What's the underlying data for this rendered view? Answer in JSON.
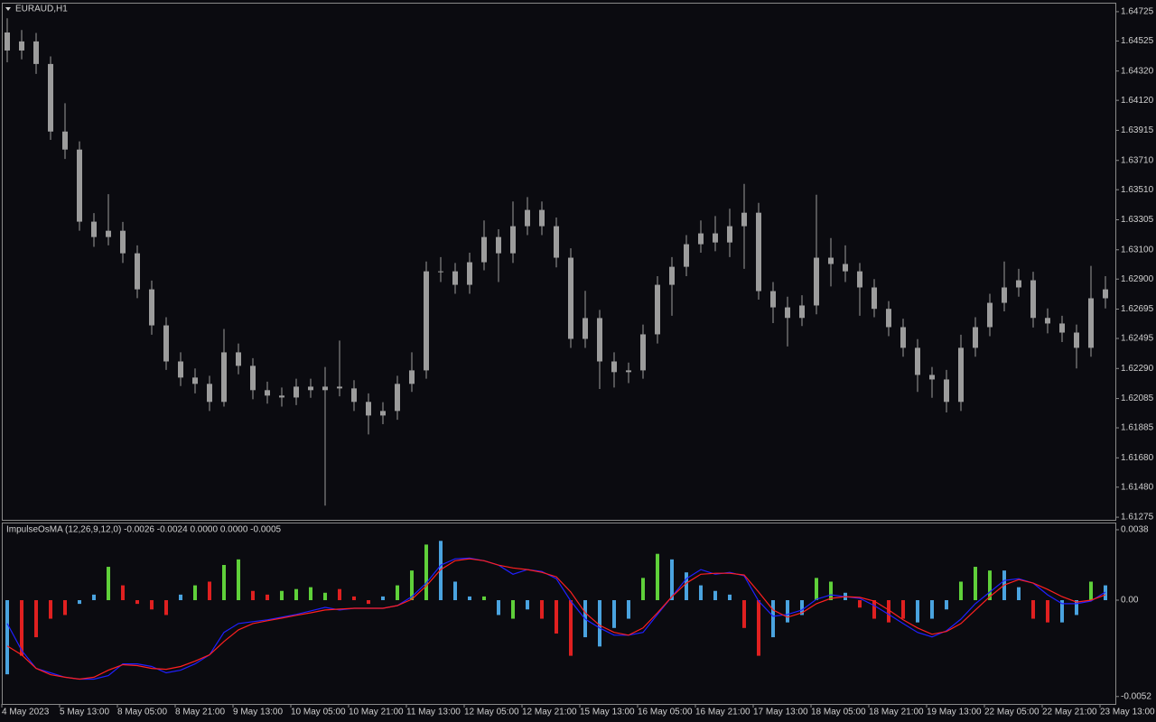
{
  "chart_data": [
    {
      "type": "candlestick",
      "title": "EURAUD,H1",
      "color": "#9c9c9c",
      "open": [
        1.64583,
        1.6446,
        1.64522,
        1.64368,
        1.63907,
        1.63784,
        1.63292,
        1.63187,
        1.6323,
        1.63076,
        1.6283,
        1.62584,
        1.62338,
        1.62228,
        1.62185,
        1.62062,
        1.624,
        1.62308,
        1.62142,
        1.62105,
        1.62092,
        1.62166,
        1.62142,
        1.62166,
        1.62154,
        1.62062,
        1.61969,
        1.62,
        1.62185,
        1.62277,
        1.62953,
        1.62953,
        1.62861,
        1.63015,
        1.63187,
        1.63076,
        1.63261,
        1.63372,
        1.63261,
        1.63046,
        1.62492,
        1.62634,
        1.62338,
        1.62265,
        1.62277,
        1.62523,
        1.62861,
        1.62984,
        1.63138,
        1.63212,
        1.6315,
        1.63261,
        1.63353,
        1.62818,
        1.62707,
        1.62635,
        1.6272,
        1.63046,
        1.63003,
        1.62953,
        1.62843,
        1.62697,
        1.62572,
        1.62431,
        1.62246,
        1.62215,
        1.62062,
        1.62431,
        1.62572,
        1.62738,
        1.62843,
        1.62892,
        1.62635,
        1.62597,
        1.62535,
        1.62431,
        1.62769
      ],
      "high": [
        1.6468,
        1.646,
        1.6458,
        1.6442,
        1.641,
        1.6384,
        1.6335,
        1.6348,
        1.6329,
        1.6313,
        1.6289,
        1.6264,
        1.624,
        1.6229,
        1.6224,
        1.6256,
        1.6246,
        1.6236,
        1.622,
        1.6216,
        1.6222,
        1.6222,
        1.623,
        1.6248,
        1.6221,
        1.6212,
        1.6206,
        1.6224,
        1.624,
        1.6302,
        1.6305,
        1.6301,
        1.6308,
        1.633,
        1.6324,
        1.6343,
        1.6346,
        1.6343,
        1.6332,
        1.6311,
        1.6282,
        1.6269,
        1.624,
        1.6233,
        1.6259,
        1.6292,
        1.6305,
        1.632,
        1.633,
        1.6333,
        1.6338,
        1.6355,
        1.6342,
        1.6288,
        1.6278,
        1.6279,
        1.63476,
        1.6318,
        1.6313,
        1.6301,
        1.629,
        1.6275,
        1.6263,
        1.6249,
        1.623,
        1.6228,
        1.6252,
        1.6264,
        1.628,
        1.6302,
        1.6297,
        1.6295,
        1.627,
        1.6265,
        1.6259,
        1.6299,
        1.6292
      ],
      "low": [
        1.6438,
        1.644,
        1.643,
        1.6385,
        1.6372,
        1.6323,
        1.6312,
        1.6313,
        1.6301,
        1.6277,
        1.6252,
        1.6228,
        1.6217,
        1.6212,
        1.62,
        1.6203,
        1.6225,
        1.6208,
        1.6205,
        1.6203,
        1.6204,
        1.6209,
        1.61354,
        1.621,
        1.62,
        1.6184,
        1.6191,
        1.6194,
        1.6213,
        1.6222,
        1.6288,
        1.628,
        1.628,
        1.6296,
        1.6288,
        1.6301,
        1.632,
        1.632,
        1.6298,
        1.6243,
        1.6243,
        1.6215,
        1.6216,
        1.6219,
        1.6222,
        1.6246,
        1.6265,
        1.6292,
        1.6308,
        1.6309,
        1.6305,
        1.6297,
        1.6276,
        1.626,
        1.6244,
        1.6258,
        1.6266,
        1.6285,
        1.6288,
        1.6265,
        1.6264,
        1.6251,
        1.6237,
        1.6213,
        1.6209,
        1.6199,
        1.62,
        1.6237,
        1.6251,
        1.6268,
        1.6278,
        1.6257,
        1.6253,
        1.6247,
        1.6229,
        1.6237,
        1.627
      ],
      "close": [
        1.6446,
        1.64522,
        1.64368,
        1.63907,
        1.63784,
        1.63292,
        1.63187,
        1.6323,
        1.63076,
        1.6283,
        1.62584,
        1.62338,
        1.62228,
        1.62185,
        1.62062,
        1.624,
        1.62308,
        1.62142,
        1.62105,
        1.62092,
        1.62166,
        1.62142,
        1.62166,
        1.62154,
        1.62062,
        1.61969,
        1.62,
        1.62185,
        1.62277,
        1.62953,
        1.62953,
        1.62861,
        1.63015,
        1.63187,
        1.63076,
        1.63261,
        1.63372,
        1.63261,
        1.63046,
        1.62492,
        1.62634,
        1.62338,
        1.62265,
        1.62277,
        1.62523,
        1.62861,
        1.62984,
        1.63138,
        1.63212,
        1.6315,
        1.63261,
        1.63353,
        1.62818,
        1.62707,
        1.62635,
        1.6272,
        1.63046,
        1.63003,
        1.62953,
        1.62843,
        1.62697,
        1.62572,
        1.62431,
        1.62246,
        1.62215,
        1.62062,
        1.62431,
        1.62572,
        1.62738,
        1.62843,
        1.62892,
        1.62635,
        1.62597,
        1.62535,
        1.62431,
        1.62769,
        1.6283
      ],
      "ylim": [
        1.61257,
        1.6478
      ],
      "yticks": [
        1.64725,
        1.64525,
        {
          "value": 1.6432,
          "label": "1.64320"
        },
        {
          "value": 1.6412,
          "label": "1.64120"
        },
        1.63915,
        {
          "value": 1.6371,
          "label": "1.63710"
        },
        {
          "value": 1.6351,
          "label": "1.63510"
        },
        1.63305,
        {
          "value": 1.631,
          "label": "1.63100"
        },
        {
          "value": 1.629,
          "label": "1.62900"
        },
        1.62695,
        1.62495,
        {
          "value": 1.6229,
          "label": "1.62290"
        },
        1.62085,
        1.61885,
        {
          "value": 1.6168,
          "label": "1.61680"
        },
        {
          "value": 1.6148,
          "label": "1.61480"
        },
        1.61275
      ]
    },
    {
      "type": "bar",
      "title": "ImpulseOsMA (12,26,9,12,0) -0.0026 -0.0024 0.0000 0.0000 -0.0005",
      "categories": [
        "4 May 2023",
        null,
        null,
        null,
        "5 May 13:00",
        null,
        null,
        null,
        "8 May 05:00",
        null,
        null,
        null,
        "8 May 21:00",
        null,
        null,
        null,
        "9 May 13:00",
        null,
        null,
        null,
        "10 May 05:00",
        null,
        null,
        null,
        "10 May 21:00",
        null,
        null,
        null,
        "11 May 13:00",
        null,
        null,
        null,
        "12 May 05:00",
        null,
        null,
        null,
        "12 May 21:00",
        null,
        null,
        null,
        "15 May 13:00",
        null,
        null,
        null,
        "16 May 05:00",
        null,
        null,
        null,
        "16 May 21:00",
        null,
        null,
        null,
        "17 May 13:00",
        null,
        null,
        null,
        "18 May 05:00",
        null,
        null,
        null,
        "18 May 21:00",
        null,
        null,
        null,
        "19 May 13:00",
        null,
        null,
        null,
        "22 May 05:00",
        null,
        null,
        null,
        "22 May 21:00",
        null,
        null,
        null,
        "23 May 13:00"
      ],
      "values": [
        -0.004,
        -0.003,
        -0.002,
        -0.001,
        -0.0008,
        -0.0002,
        0.0003,
        0.0018,
        0.0008,
        -0.0002,
        -0.0005,
        -0.0008,
        0.0003,
        0.0008,
        0.001,
        0.0019,
        0.0022,
        0.0005,
        0.0003,
        0.0005,
        0.0006,
        0.0007,
        0.0004,
        0.0006,
        0.0002,
        -0.0002,
        0.0002,
        0.0008,
        0.0016,
        0.003,
        0.0032,
        0.001,
        0.0002,
        0.0002,
        -0.0008,
        -0.001,
        -0.0005,
        -0.001,
        -0.0018,
        -0.003,
        -0.002,
        -0.0025,
        -0.0015,
        -0.001,
        0.0012,
        0.0025,
        0.0022,
        0.0015,
        0.0008,
        0.0005,
        0.0003,
        -0.0015,
        -0.003,
        -0.002,
        -0.0012,
        -0.0008,
        0.0012,
        0.001,
        0.0004,
        -0.0004,
        -0.001,
        -0.0012,
        -0.001,
        -0.0012,
        -0.001,
        -0.0005,
        0.001,
        0.0018,
        0.0016,
        0.0016,
        0.0007,
        -0.001,
        -0.0012,
        -0.0012,
        -0.0008,
        0.001,
        0.0008
      ],
      "colors": [
        "#4aa3df",
        "#e02020",
        "#e02020",
        "#e02020",
        "#e02020",
        "#4aa3df",
        "#4aa3df",
        "#5fd03a",
        "#e02020",
        "#e02020",
        "#e02020",
        "#e02020",
        "#4aa3df",
        "#5fd03a",
        "#e02020",
        "#5fd03a",
        "#5fd03a",
        "#e02020",
        "#e02020",
        "#5fd03a",
        "#5fd03a",
        "#5fd03a",
        "#5fd03a",
        "#e02020",
        "#e02020",
        "#e02020",
        "#4aa3df",
        "#5fd03a",
        "#5fd03a",
        "#5fd03a",
        "#4aa3df",
        "#4aa3df",
        "#4aa3df",
        "#5fd03a",
        "#4aa3df",
        "#5fd03a",
        "#4aa3df",
        "#e02020",
        "#e02020",
        "#e02020",
        "#4aa3df",
        "#4aa3df",
        "#4aa3df",
        "#4aa3df",
        "#5fd03a",
        "#5fd03a",
        "#4aa3df",
        "#4aa3df",
        "#4aa3df",
        "#4aa3df",
        "#4aa3df",
        "#e02020",
        "#e02020",
        "#4aa3df",
        "#4aa3df",
        "#4aa3df",
        "#5fd03a",
        "#5fd03a",
        "#4aa3df",
        "#e02020",
        "#e02020",
        "#e02020",
        "#e02020",
        "#4aa3df",
        "#4aa3df",
        "#4aa3df",
        "#5fd03a",
        "#5fd03a",
        "#5fd03a",
        "#4aa3df",
        "#4aa3df",
        "#e02020",
        "#e02020",
        "#4aa3df",
        "#4aa3df",
        "#5fd03a",
        "#4aa3df"
      ],
      "lines": [
        {
          "color": "#2020ff",
          "values": [
            -0.00126,
            -0.00271,
            -0.00368,
            -0.00392,
            -0.00416,
            -0.00426,
            -0.00426,
            -0.00407,
            -0.00344,
            -0.00344,
            -0.00358,
            -0.00392,
            -0.00378,
            -0.00344,
            -0.00295,
            -0.00174,
            -0.00126,
            -0.00116,
            -0.00106,
            -0.00092,
            -0.00077,
            -0.00058,
            -0.00039,
            -0.00053,
            -0.00044,
            -0.00044,
            -0.00044,
            -0.00029,
            0.00019,
            0.00092,
            0.00189,
            0.00223,
            0.00227,
            0.00213,
            0.00189,
            0.0014,
            0.00165,
            0.00155,
            0.00116,
            -5e-05,
            -0.00102,
            -0.0015,
            -0.00189,
            -0.00189,
            -0.00174,
            -0.00077,
            0.00019,
            0.00116,
            0.00165,
            0.0014,
            0.0015,
            0.00131,
            -5e-05,
            -0.00087,
            -0.00077,
            -0.00053,
            5e-05,
            0.00029,
            0.00019,
            0.0001,
            -0.00029,
            -0.00077,
            -0.00126,
            -0.00174,
            -0.00198,
            -0.00165,
            -0.00102,
            -0.00019,
            0.00044,
            0.00106,
            0.00116,
            0.00092,
            0.00029,
            -0.00019,
            -0.00019,
            -5e-05,
            0.00044
          ]
        },
        {
          "color": "#ff2020",
          "values": [
            -0.00247,
            -0.00295,
            -0.00368,
            -0.00402,
            -0.00416,
            -0.00426,
            -0.00416,
            -0.00378,
            -0.00348,
            -0.00353,
            -0.00368,
            -0.00373,
            -0.00358,
            -0.00329,
            -0.00295,
            -0.00223,
            -0.0016,
            -0.00126,
            -0.00111,
            -0.00097,
            -0.00082,
            -0.00068,
            -0.00053,
            -0.00048,
            -0.00044,
            -0.00044,
            -0.00044,
            -0.00029,
            5e-05,
            0.00077,
            0.00165,
            0.00213,
            0.00223,
            0.00213,
            0.00189,
            0.00174,
            0.00165,
            0.0015,
            0.00126,
            0.00044,
            -0.00068,
            -0.00136,
            -0.00174,
            -0.00189,
            -0.0015,
            -0.00068,
            0.00019,
            0.00092,
            0.0014,
            0.00145,
            0.00145,
            0.00136,
            0.00044,
            -0.00053,
            -0.00092,
            -0.00068,
            -0.00019,
            0.0001,
            0.00019,
            0.00015,
            -5e-05,
            -0.00053,
            -0.00106,
            -0.0015,
            -0.00184,
            -0.00169,
            -0.00126,
            -0.00053,
            0.00019,
            0.00082,
            0.00111,
            0.00092,
            0.00058,
            0.00019,
            -0.0001,
            0,
            0.00029
          ]
        }
      ],
      "ylim": [
        -0.0056,
        0.00414
      ],
      "yticks": [
        0.0038,
        {
          "value": 0,
          "label": "0.00"
        },
        -0.0052
      ]
    }
  ]
}
